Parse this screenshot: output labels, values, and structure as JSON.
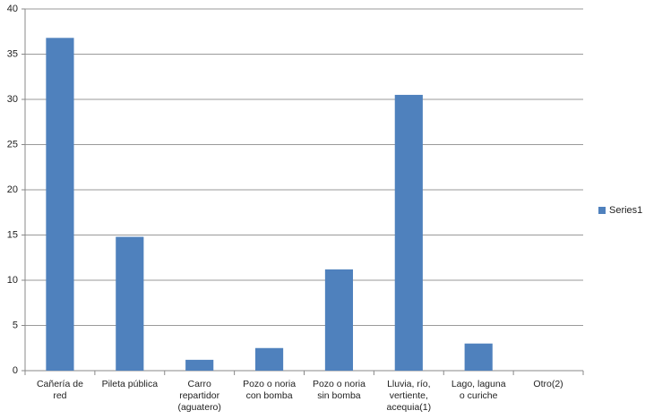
{
  "chart_data": {
    "type": "bar",
    "categories": [
      "Cañería de red",
      "Pileta pública",
      "Carro repartidor (aguatero)",
      "Pozo o noria con bomba",
      "Pozo o noria sin bomba",
      "Lluvia, río, vertiente, acequia(1)",
      "Lago, laguna o curiche",
      "Otro(2)"
    ],
    "series": [
      {
        "name": "Series1",
        "color": "#4f81bd",
        "values": [
          36.8,
          14.8,
          1.2,
          2.5,
          11.2,
          30.5,
          3.0,
          0
        ]
      }
    ],
    "ylim": [
      0,
      40
    ],
    "yticks": [
      0,
      5,
      10,
      15,
      20,
      25,
      30,
      35,
      40
    ],
    "grid": true,
    "legend": "right"
  }
}
